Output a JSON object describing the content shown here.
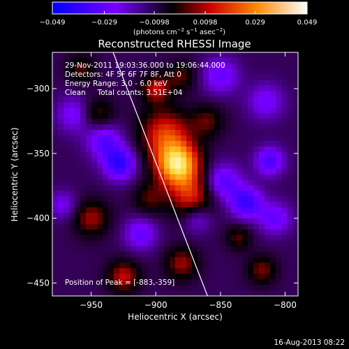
{
  "colorbar": {
    "ticks": [
      "-0.049",
      "-0.029",
      "-0.0098",
      "0.0098",
      "0.029",
      "0.049"
    ],
    "tick_values": [
      -0.049,
      -0.029,
      -0.0098,
      0.0098,
      0.029,
      0.049
    ],
    "range": [
      -0.049,
      0.049
    ],
    "colormap": [
      "#0000ff",
      "#7a00ff",
      "#000000",
      "#cc0000",
      "#ff8800",
      "#ffffff"
    ]
  },
  "title": "Reconstructed RHESSI Image",
  "info": {
    "line1": "29-Nov-2011 19:03:36.000 to 19:06:44.000",
    "line2": "Detectors: 4F 5F 6F 7F 8F, Att 0",
    "line3": "Energy Range: 3.0 - 6.0 keV",
    "line4": "Clean     Total counts: 3.51E+04"
  },
  "peak_label": "Position of Peak = [-883,-359]",
  "xlabel": "Heliocentric X (arcsec)",
  "ylabel": "Heliocentric Y (arcsec)",
  "x_ticks": [
    "-950",
    "-900",
    "-850",
    "-800"
  ],
  "y_ticks": [
    "-300",
    "-350",
    "-400",
    "-450"
  ],
  "footer_date": "16-Aug-2013 08:22",
  "chart_data": {
    "type": "heatmap",
    "title": "Reconstructed RHESSI Image",
    "xlabel": "Heliocentric X (arcsec)",
    "ylabel": "Heliocentric Y (arcsec)",
    "xlim": [
      -980,
      -790
    ],
    "ylim": [
      -460,
      -272
    ],
    "x_ticks": [
      -950,
      -900,
      -850,
      -800
    ],
    "y_ticks": [
      -300,
      -350,
      -400,
      -450
    ],
    "color_range": [
      -0.049,
      0.049
    ],
    "peak": [
      -883,
      -359
    ],
    "limb_line": [
      [
        -933,
        -272
      ],
      [
        -860,
        -460
      ]
    ],
    "blobs": [
      {
        "x": -883,
        "y": -359,
        "amp": 1.0,
        "sigma": 12
      },
      {
        "x": -893,
        "y": -335,
        "amp": 0.55,
        "sigma": 14
      },
      {
        "x": -872,
        "y": -385,
        "amp": 0.5,
        "sigma": 12
      },
      {
        "x": -900,
        "y": -300,
        "amp": 0.45,
        "sigma": 8
      },
      {
        "x": -945,
        "y": -320,
        "amp": 0.35,
        "sigma": 9
      },
      {
        "x": -950,
        "y": -400,
        "amp": 0.4,
        "sigma": 10
      },
      {
        "x": -925,
        "y": -445,
        "amp": 0.45,
        "sigma": 9
      },
      {
        "x": -880,
        "y": -435,
        "amp": 0.4,
        "sigma": 9
      },
      {
        "x": -818,
        "y": -440,
        "amp": 0.35,
        "sigma": 8
      },
      {
        "x": -836,
        "y": -415,
        "amp": 0.3,
        "sigma": 7
      },
      {
        "x": -880,
        "y": -290,
        "amp": 0.3,
        "sigma": 8
      },
      {
        "x": -905,
        "y": -385,
        "amp": 0.28,
        "sigma": 9
      },
      {
        "x": -860,
        "y": -325,
        "amp": 0.3,
        "sigma": 9
      },
      {
        "x": -958,
        "y": -285,
        "amp": 0.3,
        "sigma": 8
      },
      {
        "x": -963,
        "y": -320,
        "amp": -0.35,
        "sigma": 10
      },
      {
        "x": -928,
        "y": -358,
        "amp": -0.6,
        "sigma": 9
      },
      {
        "x": -940,
        "y": -340,
        "amp": -0.45,
        "sigma": 10
      },
      {
        "x": -848,
        "y": -372,
        "amp": -0.45,
        "sigma": 10
      },
      {
        "x": -830,
        "y": -388,
        "amp": -0.55,
        "sigma": 9
      },
      {
        "x": -812,
        "y": -356,
        "amp": -0.5,
        "sigma": 8
      },
      {
        "x": -808,
        "y": -400,
        "amp": -0.4,
        "sigma": 9
      },
      {
        "x": -815,
        "y": -310,
        "amp": -0.35,
        "sigma": 10
      },
      {
        "x": -850,
        "y": -290,
        "amp": -0.4,
        "sigma": 10
      },
      {
        "x": -868,
        "y": -400,
        "amp": -0.35,
        "sigma": 8
      },
      {
        "x": -912,
        "y": -412,
        "amp": -0.4,
        "sigma": 9
      },
      {
        "x": -972,
        "y": -390,
        "amp": -0.3,
        "sigma": 8
      }
    ]
  }
}
